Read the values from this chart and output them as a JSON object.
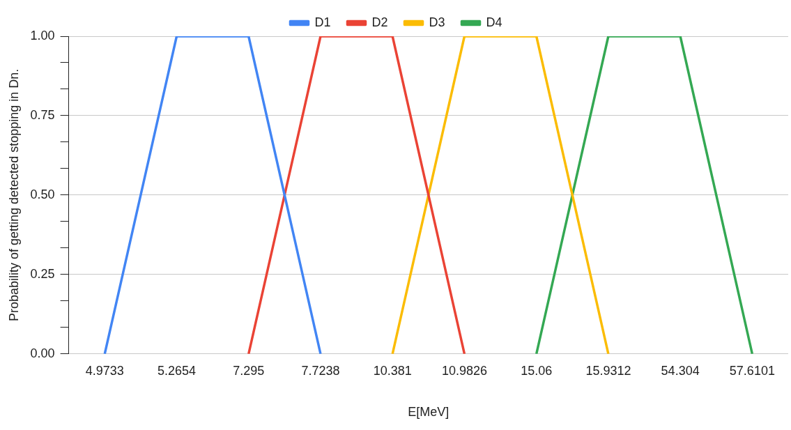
{
  "chart_data": {
    "type": "line",
    "xlabel": "E[MeV]",
    "ylabel": "Probability of getting detected stopping in Dn.",
    "categories": [
      "4.9733",
      "5.2654",
      "7.295",
      "7.7238",
      "10.381",
      "10.9826",
      "15.06",
      "15.9312",
      "54.304",
      "57.6101"
    ],
    "series": [
      {
        "name": "D1",
        "color": "#4285f4",
        "values": [
          0,
          1,
          1,
          0,
          null,
          null,
          null,
          null,
          null,
          null
        ]
      },
      {
        "name": "D2",
        "color": "#ea4335",
        "values": [
          null,
          null,
          0,
          1,
          1,
          0,
          null,
          null,
          null,
          null
        ]
      },
      {
        "name": "D3",
        "color": "#fbbc04",
        "values": [
          null,
          null,
          null,
          null,
          0,
          1,
          1,
          0,
          null,
          null
        ]
      },
      {
        "name": "D4",
        "color": "#34a853",
        "values": [
          null,
          null,
          null,
          null,
          null,
          null,
          0,
          1,
          1,
          0
        ]
      }
    ],
    "ylim": [
      0,
      1
    ],
    "yticks": [
      {
        "value": 0,
        "label": "0.00"
      },
      {
        "value": 0.0833,
        "label": null
      },
      {
        "value": 0.1667,
        "label": null
      },
      {
        "value": 0.25,
        "label": "0.25"
      },
      {
        "value": 0.3333,
        "label": null
      },
      {
        "value": 0.4167,
        "label": null
      },
      {
        "value": 0.5,
        "label": "0.50"
      },
      {
        "value": 0.5833,
        "label": null
      },
      {
        "value": 0.6667,
        "label": null
      },
      {
        "value": 0.75,
        "label": "0.75"
      },
      {
        "value": 0.8333,
        "label": null
      },
      {
        "value": 0.9167,
        "label": null
      },
      {
        "value": 1,
        "label": "1.00"
      }
    ],
    "grid": "y",
    "legend": "top",
    "marker": "none",
    "line_style": "solid"
  }
}
